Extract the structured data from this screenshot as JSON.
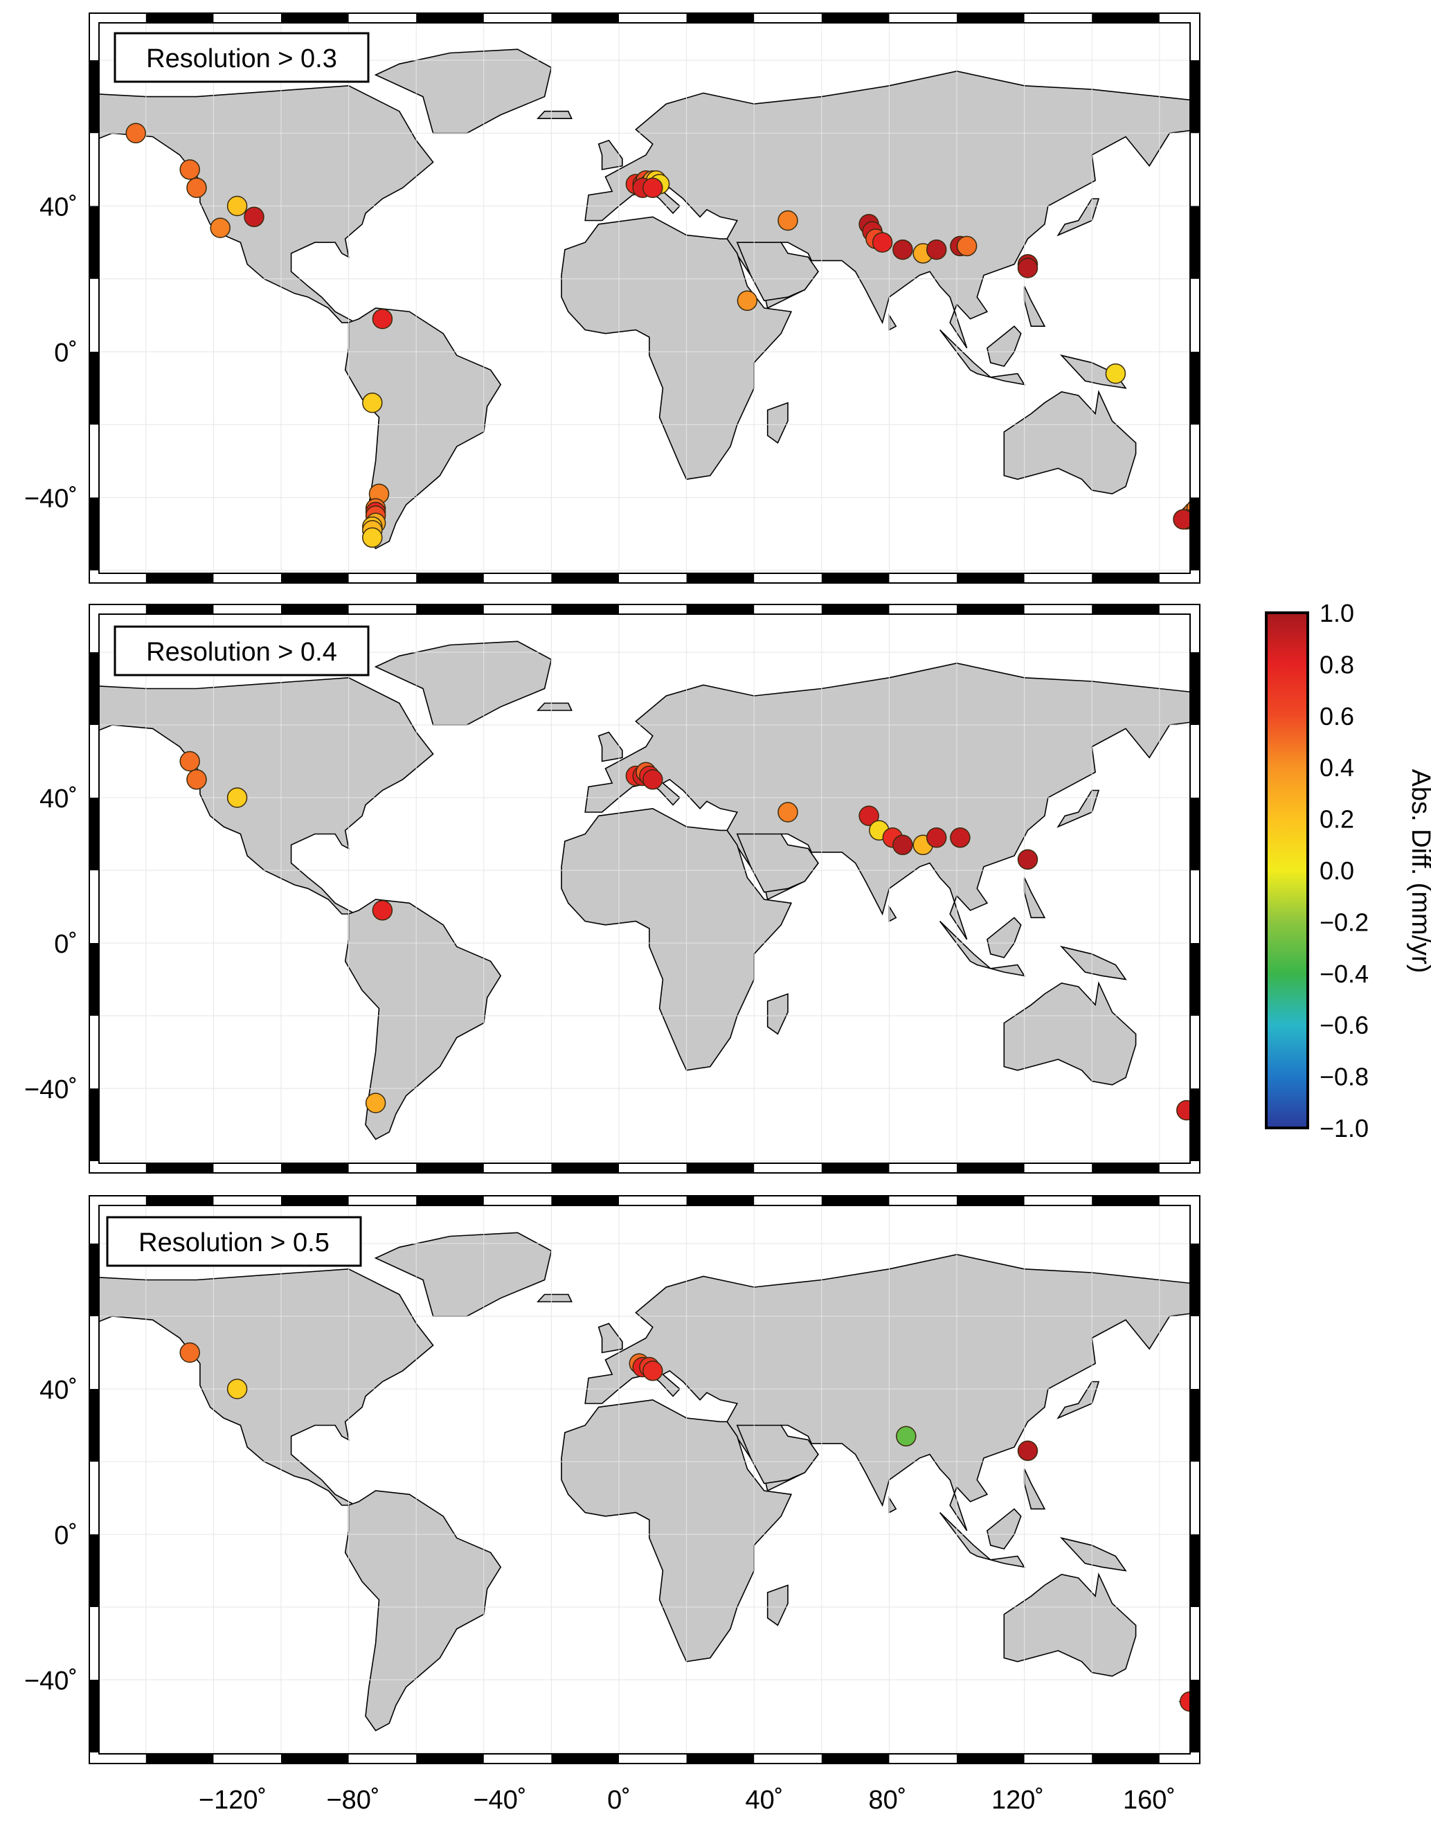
{
  "figure": {
    "x_ticks": [
      "−120˚",
      "−80˚",
      "−40˚",
      "0˚",
      "40˚",
      "80˚",
      "120˚",
      "160˚"
    ],
    "y_ticks": [
      "40˚",
      "0˚",
      "−40˚"
    ]
  },
  "panels": [
    {
      "label": "Resolution > 0.3",
      "points": [
        {
          "lon": -143,
          "lat": 60,
          "v": 0.5
        },
        {
          "lon": -127,
          "lat": 50,
          "v": 0.5
        },
        {
          "lon": -125,
          "lat": 45,
          "v": 0.5
        },
        {
          "lon": -113,
          "lat": 40,
          "v": 0.2
        },
        {
          "lon": -108,
          "lat": 37,
          "v": 0.9
        },
        {
          "lon": -118,
          "lat": 34,
          "v": 0.45
        },
        {
          "lon": -70,
          "lat": 9,
          "v": 0.8
        },
        {
          "lon": -73,
          "lat": -14,
          "v": 0.15
        },
        {
          "lon": -71,
          "lat": -39,
          "v": 0.45
        },
        {
          "lon": -72,
          "lat": -43,
          "v": 0.5
        },
        {
          "lon": -72,
          "lat": -44,
          "v": 0.8
        },
        {
          "lon": -72,
          "lat": -45,
          "v": 0.6
        },
        {
          "lon": -72,
          "lat": -47,
          "v": 0.3
        },
        {
          "lon": -73,
          "lat": -48,
          "v": 0.2
        },
        {
          "lon": -73,
          "lat": -49,
          "v": 0.25
        },
        {
          "lon": -73,
          "lat": -51,
          "v": 0.15
        },
        {
          "lon": 5,
          "lat": 46,
          "v": 0.75
        },
        {
          "lon": 7,
          "lat": 46,
          "v": 0.8
        },
        {
          "lon": 8,
          "lat": 47,
          "v": 0.6
        },
        {
          "lon": 9,
          "lat": 46,
          "v": 0.5
        },
        {
          "lon": 10,
          "lat": 47,
          "v": 0.35
        },
        {
          "lon": 11,
          "lat": 47,
          "v": 0.15
        },
        {
          "lon": 12,
          "lat": 46,
          "v": 0.1
        },
        {
          "lon": 7,
          "lat": 45,
          "v": 0.85
        },
        {
          "lon": 10,
          "lat": 45,
          "v": 0.8
        },
        {
          "lon": 50,
          "lat": 36,
          "v": 0.45
        },
        {
          "lon": 38,
          "lat": 14,
          "v": 0.4
        },
        {
          "lon": 74,
          "lat": 35,
          "v": 0.95
        },
        {
          "lon": 75,
          "lat": 33,
          "v": 0.9
        },
        {
          "lon": 76,
          "lat": 31,
          "v": 0.6
        },
        {
          "lon": 78,
          "lat": 30,
          "v": 0.8
        },
        {
          "lon": 84,
          "lat": 28,
          "v": 0.95
        },
        {
          "lon": 90,
          "lat": 27,
          "v": 0.3
        },
        {
          "lon": 94,
          "lat": 28,
          "v": 0.95
        },
        {
          "lon": 101,
          "lat": 29,
          "v": 0.95
        },
        {
          "lon": 103,
          "lat": 29,
          "v": 0.5
        },
        {
          "lon": 121,
          "lat": 24,
          "v": 0.95
        },
        {
          "lon": 121,
          "lat": 23,
          "v": 0.95
        },
        {
          "lon": 147,
          "lat": -6,
          "v": 0.1
        },
        {
          "lon": 169,
          "lat": -45,
          "v": 0.6
        },
        {
          "lon": 170,
          "lat": -44,
          "v": 0.5
        },
        {
          "lon": 171,
          "lat": -43,
          "v": 0.45
        },
        {
          "lon": 168,
          "lat": -46,
          "v": 0.95
        },
        {
          "lon": 167,
          "lat": -46,
          "v": 0.9
        }
      ]
    },
    {
      "label": "Resolution > 0.4",
      "points": [
        {
          "lon": -127,
          "lat": 50,
          "v": 0.5
        },
        {
          "lon": -125,
          "lat": 45,
          "v": 0.5
        },
        {
          "lon": -113,
          "lat": 40,
          "v": 0.15
        },
        {
          "lon": -70,
          "lat": 9,
          "v": 0.8
        },
        {
          "lon": -72,
          "lat": -44,
          "v": 0.3
        },
        {
          "lon": 5,
          "lat": 46,
          "v": 0.75
        },
        {
          "lon": 7,
          "lat": 46,
          "v": 0.85
        },
        {
          "lon": 8,
          "lat": 47,
          "v": 0.55
        },
        {
          "lon": 9,
          "lat": 46,
          "v": 0.8
        },
        {
          "lon": 10,
          "lat": 45,
          "v": 0.85
        },
        {
          "lon": 50,
          "lat": 36,
          "v": 0.45
        },
        {
          "lon": 74,
          "lat": 35,
          "v": 0.85
        },
        {
          "lon": 77,
          "lat": 31,
          "v": 0.1
        },
        {
          "lon": 81,
          "lat": 29,
          "v": 0.75
        },
        {
          "lon": 84,
          "lat": 27,
          "v": 0.95
        },
        {
          "lon": 90,
          "lat": 27,
          "v": 0.25
        },
        {
          "lon": 94,
          "lat": 29,
          "v": 0.9
        },
        {
          "lon": 101,
          "lat": 29,
          "v": 0.9
        },
        {
          "lon": 121,
          "lat": 23,
          "v": 0.95
        },
        {
          "lon": 168,
          "lat": -46,
          "v": 0.85
        }
      ]
    },
    {
      "label": "Resolution > 0.5",
      "points": [
        {
          "lon": -127,
          "lat": 50,
          "v": 0.5
        },
        {
          "lon": -113,
          "lat": 40,
          "v": 0.15
        },
        {
          "lon": 6,
          "lat": 47,
          "v": 0.5
        },
        {
          "lon": 7,
          "lat": 46,
          "v": 0.8
        },
        {
          "lon": 9,
          "lat": 46,
          "v": 0.7
        },
        {
          "lon": 10,
          "lat": 45,
          "v": 0.75
        },
        {
          "lon": 85,
          "lat": 27,
          "v": -0.3
        },
        {
          "lon": 121,
          "lat": 23,
          "v": 0.95
        },
        {
          "lon": 169,
          "lat": -46,
          "v": 0.8
        }
      ]
    }
  ],
  "colorbar": {
    "title": "Abs. Diff. (mm/yr)",
    "ticks": [
      "1.0",
      "0.8",
      "0.6",
      "0.4",
      "0.2",
      "0.0",
      "−0.2",
      "−0.4",
      "−0.6",
      "−0.8",
      "−1.0"
    ],
    "range": [
      -1.0,
      1.0
    ],
    "colors": [
      "#2b3b9c",
      "#1f78c8",
      "#29b6c8",
      "#3bb54a",
      "#8dc63f",
      "#f2ec1c",
      "#fcc21e",
      "#f79324",
      "#ef4a24",
      "#e52222",
      "#a6191e"
    ]
  },
  "land_color": "#c8c8c8",
  "coast_color": "#000000"
}
